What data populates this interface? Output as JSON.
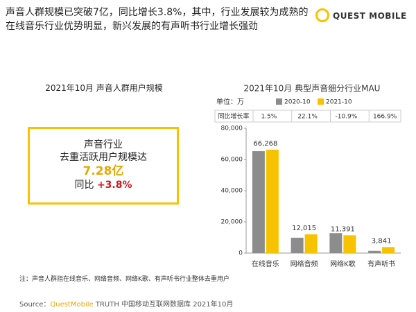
{
  "header": {
    "title": "声音人群规模已突破7亿，同比增长3.8%，其中，行业发展较为成熟的在线音乐行业优势明显，新兴发展的有声听书行业增长强劲",
    "logo": "QUEST MOBILE"
  },
  "left_panel": {
    "title": "2021年10月 声音人群用户规模",
    "line1": "声音行业",
    "line2": "去重活跃用户规模达",
    "highlight": "7.28亿",
    "yoy_label": "同比",
    "yoy_value": "+3.8%"
  },
  "chart_data": {
    "type": "bar",
    "title": "2021年10月  典型声音细分行业MAU",
    "unit": "单位：万",
    "categories": [
      "在线音乐",
      "网络音频",
      "网络K歌",
      "有声听书"
    ],
    "series": [
      {
        "name": "2020-10",
        "color": "#8c8c8c",
        "values": [
          65300,
          9840,
          12780,
          1440
        ]
      },
      {
        "name": "2021-10",
        "color": "#f7c300",
        "values": [
          66268,
          12015,
          11391,
          3841
        ],
        "value_labels": [
          "66,268",
          "12,015",
          "11,391",
          "3,841"
        ]
      }
    ],
    "growth_row": {
      "label": "同比增长率",
      "cells": [
        "1.5%",
        "22.1%",
        "-10.9%",
        "166.9%"
      ]
    },
    "ylim": [
      0,
      80000
    ],
    "yticks": [
      0,
      {
        "value": 20000,
        "label": "20,000"
      },
      {
        "value": 40000,
        "label": "40,000"
      },
      {
        "value": 60000,
        "label": "60,000"
      },
      {
        "value": 80000,
        "label": "80,000"
      }
    ]
  },
  "note": "注：声音人群指在线音乐、网络音频、网络K歌、有声听书行业整体去重用户",
  "source": {
    "prefix": "Source：",
    "brand": "QuestMobile",
    "text": "TRUTH 中国移动互联网数据库 2021年10月"
  }
}
